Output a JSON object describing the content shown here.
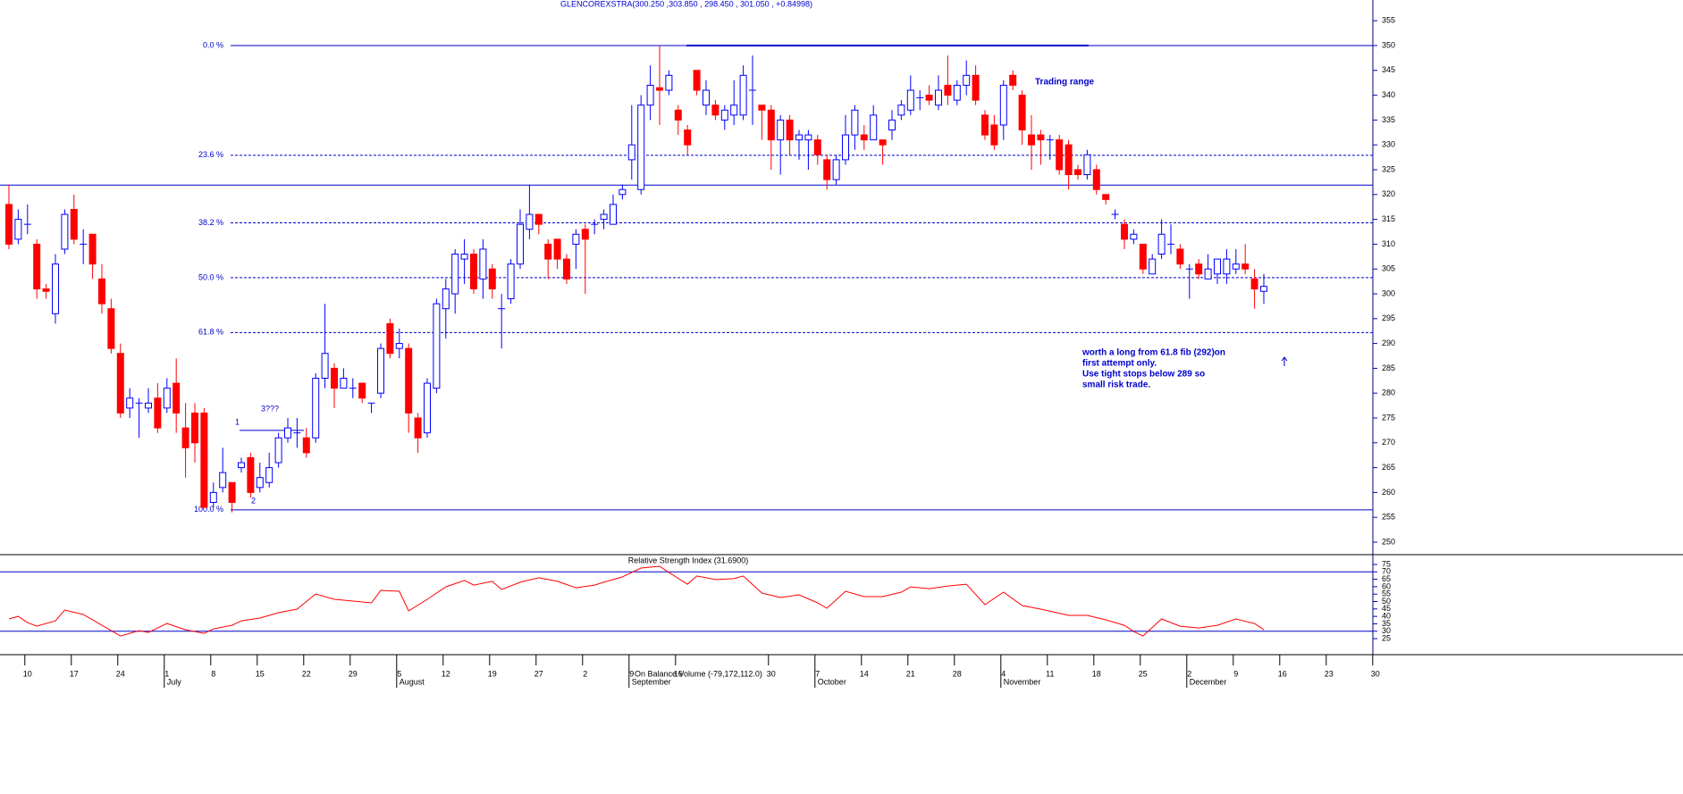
{
  "chart_data": [
    {
      "type": "candlestick",
      "title": "GLENCOREXSTRA(300.250 ,303.850 , 298.450 , 301.050 , +0.84998)",
      "open": [
        318,
        311,
        314,
        310,
        301,
        296,
        309,
        317,
        310,
        312,
        303,
        297,
        288,
        277,
        278,
        277,
        279,
        277,
        282,
        273,
        276,
        276,
        258,
        261,
        262,
        265,
        267,
        261,
        262,
        266,
        271,
        272,
        271,
        271,
        283,
        285,
        281,
        281,
        282,
        278,
        280,
        294,
        289,
        289,
        275,
        272,
        281,
        297,
        300,
        307,
        308,
        303,
        305,
        297,
        299,
        306,
        313,
        316,
        310,
        311,
        307,
        310,
        313,
        314,
        315,
        314,
        320,
        327,
        321,
        338,
        341.5,
        341,
        337,
        333,
        345,
        338,
        338,
        335,
        336,
        336,
        341,
        338,
        337,
        331,
        335,
        331,
        331,
        331,
        327,
        323,
        327,
        332,
        332,
        331,
        331,
        333,
        336,
        337,
        339.5,
        340,
        338,
        342,
        339,
        342,
        344,
        336,
        334,
        334,
        344,
        340,
        332,
        332,
        331,
        331,
        330,
        325,
        324,
        325,
        320,
        316,
        314,
        311,
        310,
        304,
        308,
        310,
        309,
        305,
        306,
        303,
        304,
        304,
        305,
        306,
        303,
        300.5
      ],
      "high": [
        322,
        317,
        318,
        311,
        302,
        308,
        317,
        320,
        313,
        312,
        306,
        299,
        290,
        281,
        279,
        281,
        282,
        283,
        287,
        278,
        278,
        277,
        262,
        269,
        262,
        267,
        268,
        266,
        268,
        272,
        275,
        275,
        273,
        284,
        298,
        286,
        285,
        283,
        282,
        278,
        290,
        295,
        293,
        290,
        276,
        283,
        299,
        303,
        309,
        311,
        309,
        311,
        306,
        300,
        307,
        317,
        322,
        316,
        311,
        311,
        308,
        313,
        314,
        315,
        317,
        320,
        322,
        338,
        340,
        346,
        350,
        345,
        338,
        334,
        345,
        343,
        339,
        338,
        343,
        346,
        348,
        338,
        338,
        336,
        336,
        333,
        333,
        332,
        328,
        328,
        336,
        338,
        334,
        338,
        331,
        337,
        339,
        344,
        341,
        342,
        344,
        348,
        343,
        347,
        346,
        337,
        336,
        343,
        345,
        341,
        336,
        333,
        332,
        332,
        331,
        326,
        329,
        326,
        320,
        317,
        315,
        313,
        310,
        308,
        315,
        314,
        310,
        306,
        307,
        308,
        307,
        309,
        309,
        310,
        305,
        304
      ],
      "low": [
        309,
        310,
        312,
        299,
        299,
        294,
        308,
        310,
        306,
        303,
        296,
        288,
        275,
        275,
        271,
        276,
        272,
        276,
        272,
        263,
        266,
        257,
        257,
        260,
        256,
        264,
        259,
        260,
        261,
        265,
        270,
        269,
        267,
        270,
        281,
        277,
        281,
        279,
        278,
        276,
        279,
        287,
        287,
        272,
        268,
        271,
        280,
        291,
        296,
        302,
        300,
        299,
        299,
        289,
        298,
        305,
        311,
        312,
        303,
        305,
        302,
        305,
        300,
        312,
        313,
        314,
        319,
        323,
        320,
        335,
        334,
        340,
        332,
        328,
        340,
        336,
        335,
        333,
        334,
        335,
        334,
        331,
        325,
        324,
        328,
        327,
        325,
        326,
        321,
        322,
        326,
        329,
        329,
        331,
        326,
        331,
        335,
        336,
        337,
        338,
        337,
        338,
        338,
        340,
        338,
        331,
        329,
        331,
        341,
        330,
        325,
        326,
        327,
        324,
        321,
        323,
        323,
        320,
        318,
        315,
        309,
        310,
        304,
        304,
        307,
        308,
        305,
        299,
        303,
        303,
        302,
        302,
        304,
        304,
        297,
        298
      ],
      "close": [
        310,
        315,
        314,
        301,
        300.5,
        306,
        316,
        311,
        310,
        306,
        298,
        289,
        276,
        279,
        278,
        278,
        273,
        281,
        276,
        269,
        270,
        257,
        260,
        264,
        258,
        266,
        260,
        263,
        265,
        271,
        273,
        272,
        268,
        283,
        288,
        281,
        283,
        281,
        279,
        278,
        289,
        288,
        290,
        276,
        271,
        282,
        298,
        301,
        308,
        308,
        301,
        309,
        301,
        297,
        306,
        314,
        316,
        314,
        307,
        307,
        303,
        312,
        311,
        314,
        316,
        318,
        321,
        330,
        338,
        342,
        341,
        344,
        335,
        330,
        341,
        341,
        336,
        337,
        338,
        344,
        341,
        337,
        331,
        335,
        331,
        332,
        332,
        328,
        323,
        327,
        332,
        337,
        331,
        336,
        330,
        335,
        338,
        341,
        339.5,
        339,
        341,
        340,
        342,
        344,
        339,
        332,
        330,
        342,
        342,
        333,
        330,
        331,
        331,
        325,
        324,
        324,
        328,
        321,
        319,
        316,
        311,
        312,
        305,
        307,
        312,
        310,
        306,
        305,
        304,
        305,
        307,
        307,
        306,
        305,
        301,
        301.5
      ],
      "up_color": "#0000ff",
      "down_color": "#ff0000",
      "xlim": [
        -0.96,
        146.73
      ],
      "xticks": [
        {
          "value": 2,
          "label": "10"
        },
        {
          "value": 7,
          "label": "17"
        },
        {
          "value": 12,
          "label": "24"
        },
        {
          "value": 17,
          "label": "1"
        },
        {
          "value": 22,
          "label": "8"
        },
        {
          "value": 27,
          "label": "15"
        },
        {
          "value": 32,
          "label": "22"
        },
        {
          "value": 37,
          "label": "29"
        },
        {
          "value": 42,
          "label": "5"
        },
        {
          "value": 47,
          "label": "12"
        },
        {
          "value": 52,
          "label": "19"
        },
        {
          "value": 57,
          "label": "27"
        },
        {
          "value": 62,
          "label": "2"
        },
        {
          "value": 67,
          "label": "9"
        },
        {
          "value": 72,
          "label": "16"
        },
        {
          "value": 82,
          "label": "30"
        },
        {
          "value": 87,
          "label": "7"
        },
        {
          "value": 92,
          "label": "14"
        },
        {
          "value": 97,
          "label": "21"
        },
        {
          "value": 102,
          "label": "28"
        },
        {
          "value": 107,
          "label": "4"
        },
        {
          "value": 112,
          "label": "11"
        },
        {
          "value": 117,
          "label": "18"
        },
        {
          "value": 122,
          "label": "25"
        },
        {
          "value": 127,
          "label": "2"
        },
        {
          "value": 132,
          "label": "9"
        },
        {
          "value": 137,
          "label": "16"
        },
        {
          "value": 142,
          "label": "23"
        },
        {
          "value": 147,
          "label": "30"
        }
      ],
      "month_ticks": [
        {
          "value": 17,
          "label": "July"
        },
        {
          "value": 42,
          "label": "August"
        },
        {
          "value": 67,
          "label": "September"
        },
        {
          "value": 87,
          "label": "October"
        },
        {
          "value": 107,
          "label": "November"
        },
        {
          "value": 127,
          "label": "December"
        }
      ],
      "ylim": [
        247.48,
        359.17
      ],
      "yticks": [
        250,
        255,
        260,
        265,
        270,
        275,
        280,
        285,
        290,
        295,
        300,
        305,
        310,
        315,
        320,
        325,
        330,
        335,
        340,
        345,
        350,
        355
      ],
      "fib_levels": [
        {
          "label": "0.0 %",
          "value": 350
        },
        {
          "label": "23.6 %",
          "value": 327.9
        },
        {
          "label": "38.2 %",
          "value": 314.3
        },
        {
          "label": "50.0 %",
          "value": 303.25
        },
        {
          "label": "61.8 %",
          "value": 292.2
        },
        {
          "label": "100.0 %",
          "value": 256.5
        }
      ],
      "support": 321.9,
      "trendline": 272.5,
      "labels": {
        "point1": "1",
        "point2": "2",
        "point3": "3???",
        "range": "Trading range",
        "note": [
          "worth a long from 61.8 fib (292)on",
          "first attempt only.",
          "Use tight stops below 289 so",
          "small risk trade."
        ]
      },
      "indicator_label": "On Balance Volume (-79,172,112.0)"
    },
    {
      "type": "line",
      "title": "Relative Strength Index (31.6900)",
      "color": "#ff0000",
      "xlim": [
        -0.96,
        146.73
      ],
      "x": [
        0,
        1,
        2,
        3,
        5,
        6,
        8,
        10,
        12,
        14,
        15,
        17,
        19,
        21,
        22,
        24,
        25,
        27,
        29,
        31,
        33,
        35,
        37,
        39,
        40,
        42,
        43,
        45,
        47,
        49,
        50,
        52,
        53,
        55,
        57,
        59,
        61,
        63,
        64,
        66,
        68,
        70,
        71,
        73,
        74,
        76,
        78,
        79,
        81,
        83,
        85,
        87,
        88,
        90,
        92,
        94,
        96,
        97,
        99,
        101,
        103,
        105,
        107,
        109,
        111,
        114,
        116,
        118,
        120,
        121,
        122,
        124,
        126,
        128,
        130,
        132,
        134,
        135
      ],
      "values": [
        38.3,
        40,
        35.8,
        33.4,
        37,
        44.3,
        41.3,
        34,
        26.8,
        30.4,
        29.2,
        35.2,
        31,
        28.6,
        31.6,
        34,
        37,
        38.9,
        42.5,
        44.9,
        55.1,
        51.5,
        50.3,
        49.1,
        57.5,
        56.9,
        43.7,
        51.5,
        59.9,
        64.2,
        61.1,
        63.6,
        58.1,
        63,
        66,
        63.6,
        59.3,
        61.1,
        63,
        66.6,
        72.6,
        73.8,
        69.6,
        61.7,
        67.2,
        64.8,
        65.4,
        67.2,
        55.7,
        52.7,
        54.5,
        49.1,
        45.5,
        56.9,
        53.3,
        53.3,
        56.3,
        59.9,
        58.7,
        60.5,
        61.7,
        47.9,
        56.3,
        47.3,
        44.9,
        40.7,
        40.7,
        37.7,
        34,
        29.8,
        26.8,
        38.3,
        33.4,
        32.2,
        34,
        38.3,
        35.2,
        31
      ],
      "ylim": [
        14.2,
        81
      ],
      "yticks": [
        25,
        30,
        35,
        40,
        45,
        50,
        55,
        60,
        65,
        70,
        75
      ],
      "levels": [
        70,
        30
      ]
    }
  ]
}
